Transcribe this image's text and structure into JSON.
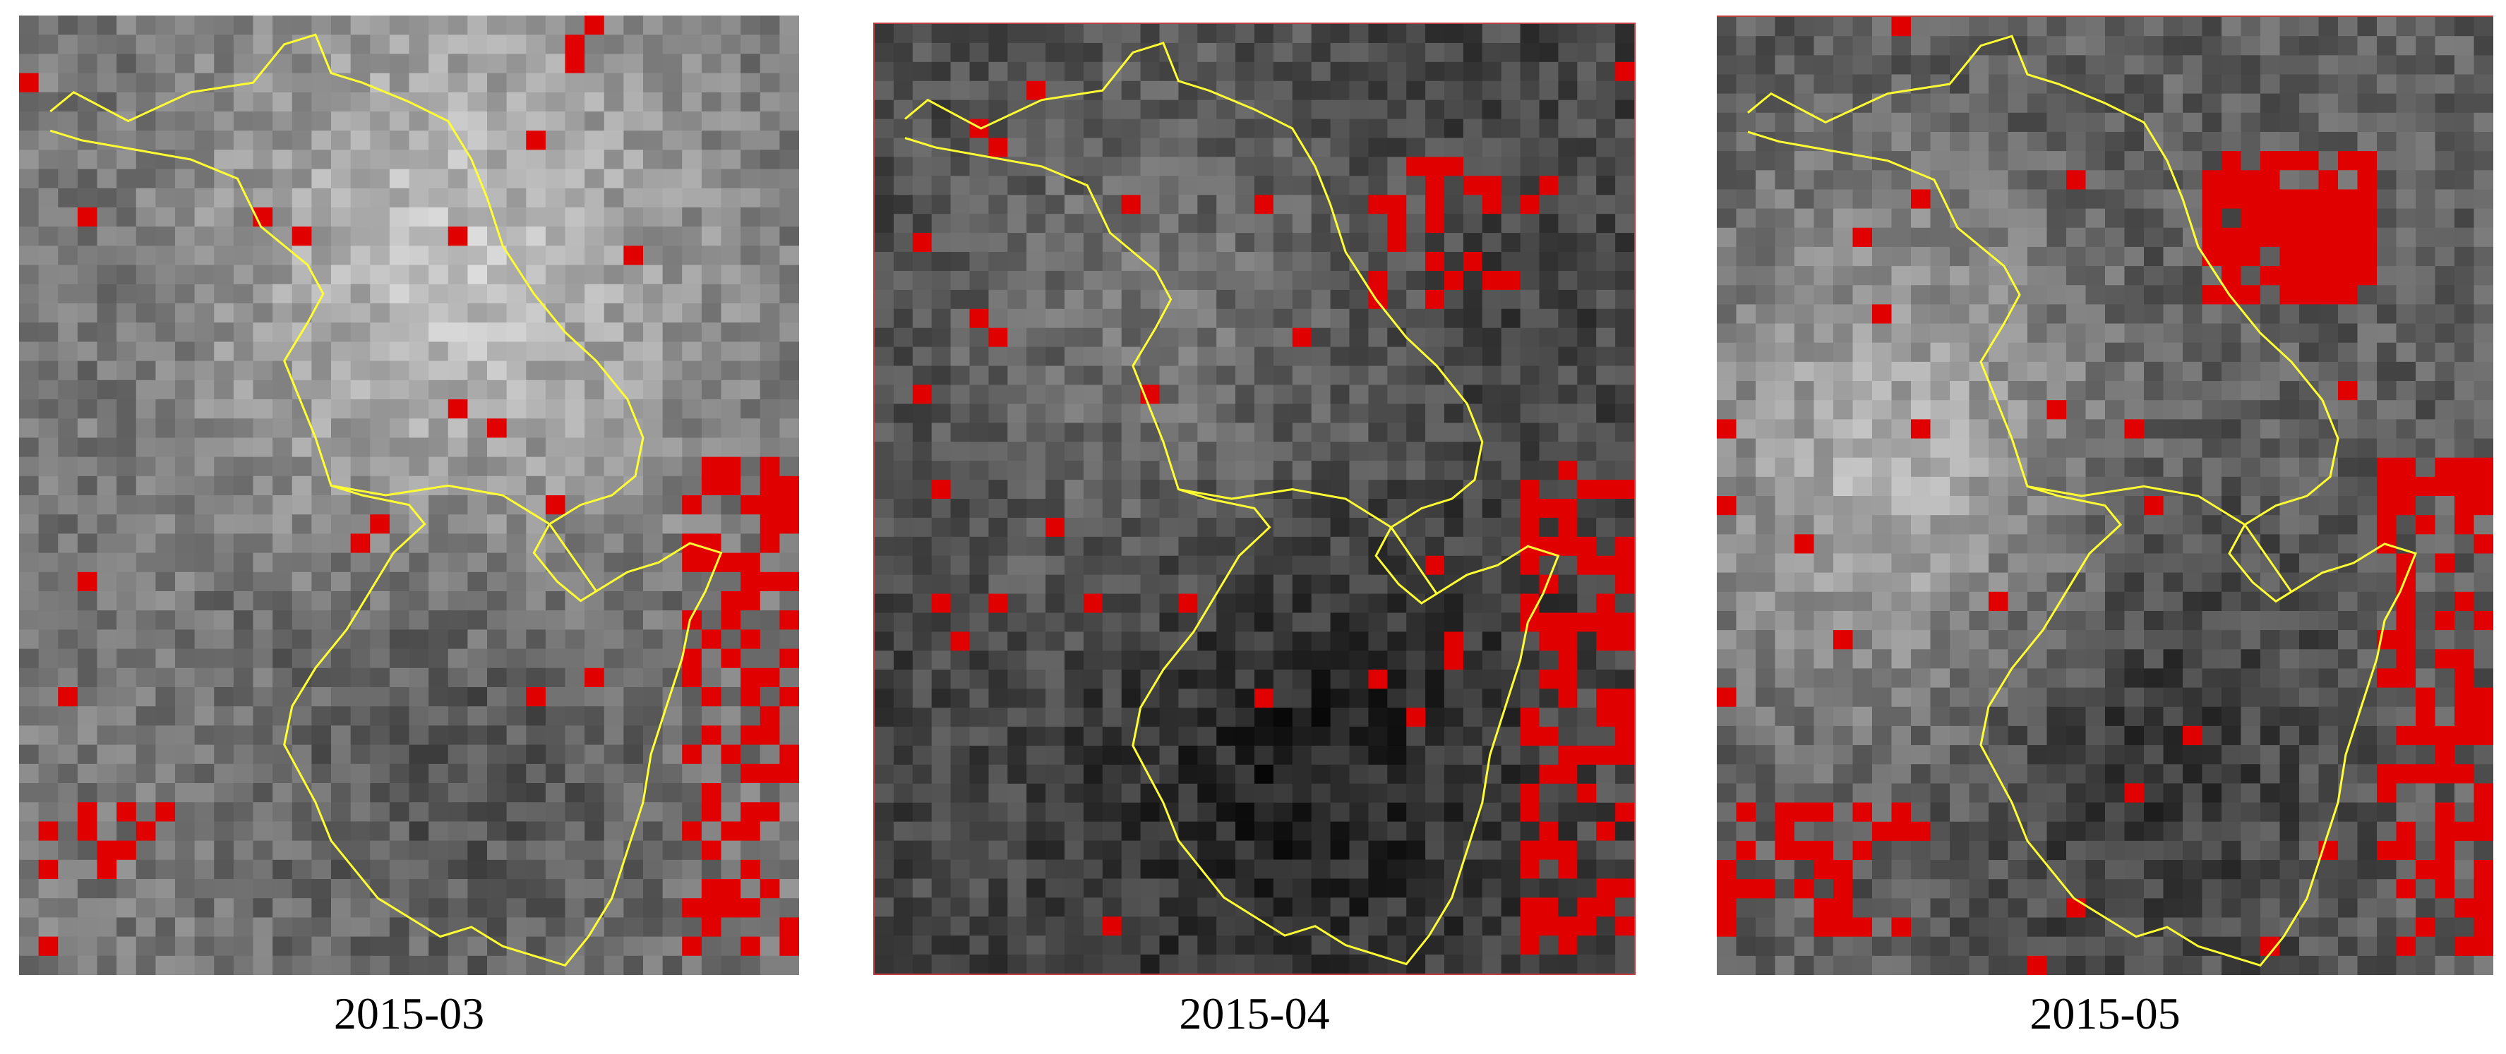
{
  "panels": [
    {
      "caption": "2015-03",
      "seed": 7,
      "base_tone": 120,
      "bright_region": "north",
      "hotspot_color": "#e00000",
      "boundary_color": "#ffff33"
    },
    {
      "caption": "2015-04",
      "seed": 23,
      "base_tone": 70,
      "bright_region": "center",
      "hotspot_color": "#e00000",
      "boundary_color": "#ffff33"
    },
    {
      "caption": "2015-05",
      "seed": 41,
      "base_tone": 95,
      "bright_region": "west",
      "hotspot_color": "#e00000",
      "boundary_color": "#ffff33"
    }
  ],
  "colors": {
    "background": "#ffffff",
    "hotspot": "#e00000",
    "boundary": "#ffff33",
    "frame_edge": "#c04040"
  }
}
